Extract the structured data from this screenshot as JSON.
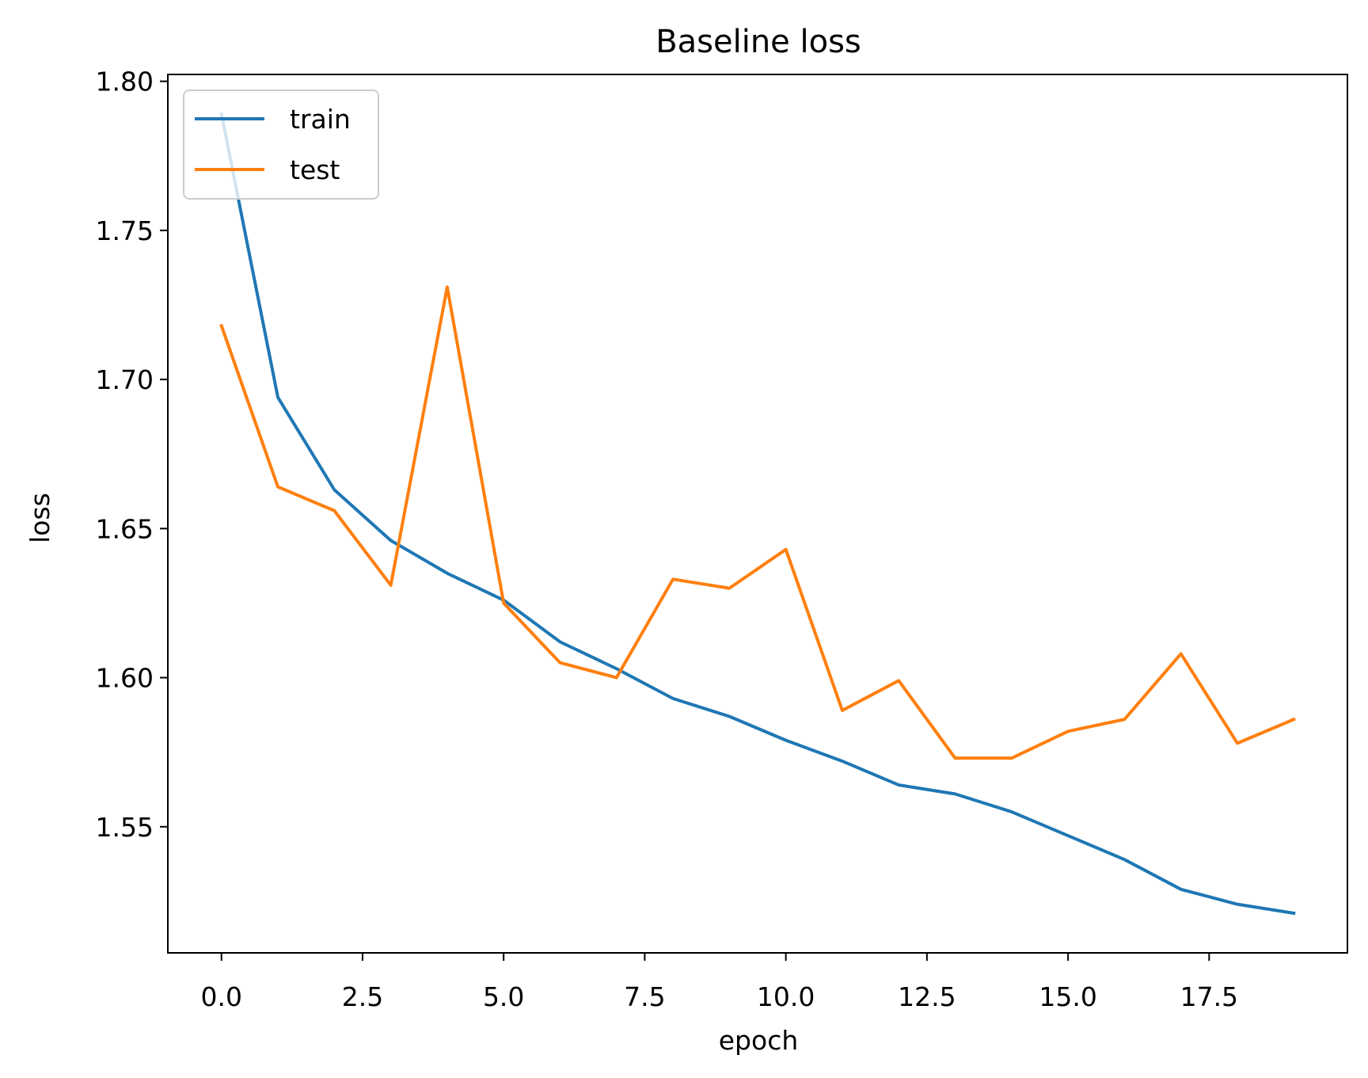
{
  "chart_data": {
    "type": "line",
    "title": "Baseline loss",
    "xlabel": "epoch",
    "ylabel": "loss",
    "x": [
      0,
      1,
      2,
      3,
      4,
      5,
      6,
      7,
      8,
      9,
      10,
      11,
      12,
      13,
      14,
      15,
      16,
      17,
      18,
      19
    ],
    "series": [
      {
        "name": "train",
        "color": "#1f77b4",
        "values": [
          1.789,
          1.694,
          1.663,
          1.646,
          1.635,
          1.626,
          1.612,
          1.603,
          1.593,
          1.587,
          1.579,
          1.572,
          1.564,
          1.561,
          1.555,
          1.547,
          1.539,
          1.529,
          1.524,
          1.521
        ]
      },
      {
        "name": "test",
        "color": "#ff7f0e",
        "values": [
          1.718,
          1.664,
          1.656,
          1.631,
          1.731,
          1.625,
          1.605,
          1.6,
          1.633,
          1.63,
          1.643,
          1.589,
          1.599,
          1.573,
          1.573,
          1.582,
          1.586,
          1.608,
          1.578,
          1.586
        ]
      }
    ],
    "xlim": [
      -0.95,
      19.95
    ],
    "ylim": [
      1.5077,
      1.8023
    ],
    "xticks": [
      0,
      2.5,
      5,
      7.5,
      10,
      12.5,
      15,
      17.5
    ],
    "xtick_labels": [
      "0.0",
      "2.5",
      "5.0",
      "7.5",
      "10.0",
      "12.5",
      "15.0",
      "17.5"
    ],
    "yticks": [
      1.55,
      1.6,
      1.65,
      1.7,
      1.75,
      1.8
    ],
    "ytick_labels": [
      "1.55",
      "1.60",
      "1.65",
      "1.70",
      "1.75",
      "1.80"
    ],
    "grid": false,
    "legend_position": "upper-left"
  }
}
